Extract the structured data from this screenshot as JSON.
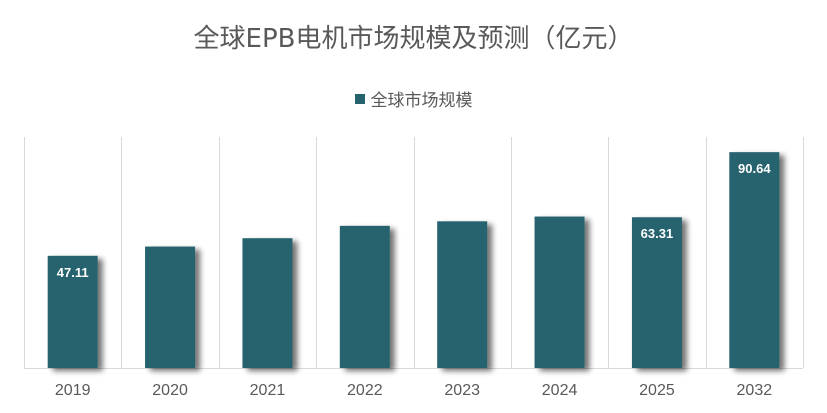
{
  "chart_data": {
    "type": "bar",
    "title": "全球EPB电机市场规模及预测（亿元）",
    "legend": [
      {
        "name": "全球市场规模",
        "color": "#27636e"
      }
    ],
    "categories": [
      "2019",
      "2020",
      "2021",
      "2022",
      "2023",
      "2024",
      "2025",
      "2032"
    ],
    "series": [
      {
        "name": "全球市场规模",
        "values": [
          47.11,
          51.0,
          54.5,
          59.7,
          61.6,
          63.6,
          63.31,
          90.64
        ]
      }
    ],
    "data_labels": [
      "47.11",
      "",
      "",
      "",
      "",
      "",
      "63.31",
      "90.64"
    ],
    "ylim": [
      0,
      97
    ],
    "xlabel": "",
    "ylabel": "",
    "grid": "vertical"
  },
  "colors": {
    "bar": "#27636e",
    "grid": "#d9d9d9",
    "text": "#595959"
  }
}
